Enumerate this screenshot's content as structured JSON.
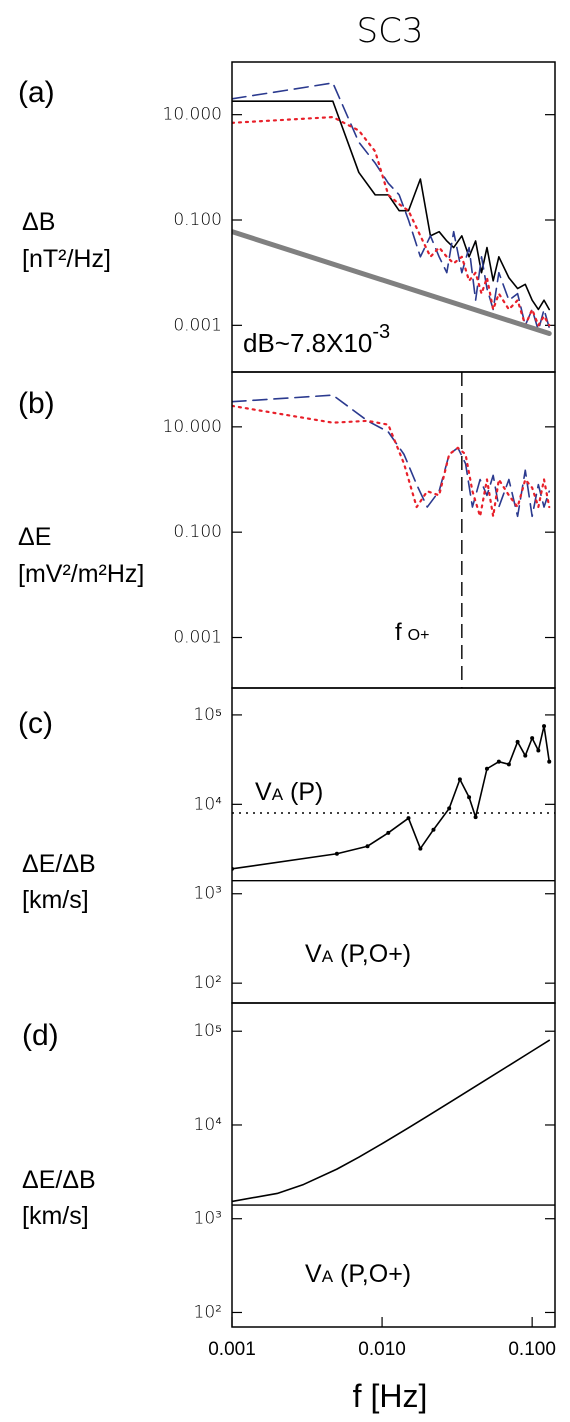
{
  "chart_data": [
    {
      "type": "line",
      "title": "SC3",
      "panel_label": "(a)",
      "ylabel": [
        "ΔB",
        "[nT²/Hz]"
      ],
      "log_x": true,
      "log_y": true,
      "xlim": [
        0.001,
        0.142
      ],
      "ylim": [
        0.00013,
        100
      ],
      "yticks": [
        {
          "value": 10,
          "label": "10.000"
        },
        {
          "value": 0.1,
          "label": "0.100"
        },
        {
          "value": 0.001,
          "label": "0.001"
        }
      ],
      "x": [
        0.001,
        0.0047,
        0.007,
        0.009,
        0.011,
        0.013,
        0.015,
        0.018,
        0.021,
        0.024,
        0.027,
        0.03,
        0.034,
        0.038,
        0.042,
        0.046,
        0.05,
        0.055,
        0.06,
        0.07,
        0.08,
        0.09,
        0.1,
        0.11,
        0.12,
        0.13
      ],
      "series": [
        {
          "color": "#000000",
          "style": "solid",
          "values": [
            18,
            18,
            0.8,
            0.3,
            0.3,
            0.15,
            0.15,
            0.6,
            0.05,
            0.06,
            0.04,
            0.03,
            0.05,
            0.02,
            0.04,
            0.01,
            0.03,
            0.007,
            0.02,
            0.008,
            0.005,
            0.006,
            0.003,
            0.002,
            0.003,
            0.002
          ]
        },
        {
          "color": "#2b3a8f",
          "style": "dashed",
          "values": [
            20,
            40,
            3,
            1.2,
            0.5,
            0.3,
            0.1,
            0.02,
            0.05,
            0.02,
            0.01,
            0.06,
            0.01,
            0.03,
            0.003,
            0.02,
            0.005,
            0.002,
            0.01,
            0.003,
            0.004,
            0.001,
            0.002,
            0.0008,
            0.002,
            0.0009
          ]
        },
        {
          "color": "#e8202a",
          "style": "dotted",
          "values": [
            7,
            9,
            5,
            2,
            0.3,
            0.2,
            0.15,
            0.05,
            0.02,
            0.03,
            0.02,
            0.015,
            0.02,
            0.007,
            0.01,
            0.004,
            0.008,
            0.002,
            0.004,
            0.002,
            0.003,
            0.001,
            0.002,
            0.001,
            0.0015,
            0.001
          ]
        },
        {
          "color": "#808080",
          "style": "thick",
          "x": [
            0.001,
            0.13
          ],
          "values": [
            0.06,
            0.0007
          ]
        }
      ],
      "annotation": {
        "text": "dB~7.8X10",
        "superscript": "-3"
      }
    },
    {
      "type": "line",
      "panel_label": "(b)",
      "ylabel": [
        "ΔE",
        "[mV²/m²Hz]"
      ],
      "log_x": true,
      "log_y": true,
      "xlim": [
        0.001,
        0.142
      ],
      "ylim": [
        0.00011,
        110
      ],
      "yticks": [
        {
          "value": 10,
          "label": "10.000"
        },
        {
          "value": 0.1,
          "label": "0.100"
        },
        {
          "value": 0.001,
          "label": "0.001"
        }
      ],
      "x": [
        0.001,
        0.0047,
        0.008,
        0.011,
        0.014,
        0.017,
        0.02,
        0.024,
        0.028,
        0.032,
        0.036,
        0.04,
        0.045,
        0.05,
        0.055,
        0.06,
        0.07,
        0.08,
        0.09,
        0.1,
        0.11,
        0.12,
        0.13
      ],
      "series": [
        {
          "color": "#2b3a8f",
          "style": "dashed",
          "values": [
            30,
            40,
            13,
            8,
            3,
            0.8,
            0.3,
            0.6,
            3,
            4,
            2,
            0.3,
            1,
            0.5,
            1.2,
            0.3,
            1,
            0.2,
            1.5,
            0.2,
            0.8,
            0.3,
            0.6
          ]
        },
        {
          "color": "#e8202a",
          "style": "dotted",
          "values": [
            25,
            12,
            13,
            11,
            2,
            0.3,
            0.6,
            0.5,
            3,
            4,
            3,
            0.6,
            0.2,
            1,
            0.2,
            1,
            0.5,
            0.3,
            1,
            0.7,
            0.3,
            1,
            0.3
          ]
        }
      ],
      "vlines": [
        {
          "value": 0.034,
          "style": "dashed"
        }
      ],
      "annotation": {
        "text": "f",
        "subscript": "O+"
      }
    },
    {
      "type": "line",
      "panel_label": "(c)",
      "ylabel": [
        "ΔE/ΔB",
        "[km/s]"
      ],
      "log_x": true,
      "log_y": true,
      "xlim": [
        0.001,
        0.142
      ],
      "ylim": [
        60,
        200000
      ],
      "yticks": [
        {
          "value": 100000,
          "label": "10⁵"
        },
        {
          "value": 10000,
          "label": "10⁴"
        },
        {
          "value": 1000,
          "label": "10³"
        },
        {
          "value": 100,
          "label": "10²"
        }
      ],
      "x": [
        0.001,
        0.005,
        0.008,
        0.011,
        0.015,
        0.018,
        0.022,
        0.028,
        0.033,
        0.038,
        0.042,
        0.05,
        0.06,
        0.07,
        0.08,
        0.09,
        0.1,
        0.11,
        0.12,
        0.13
      ],
      "series": [
        {
          "color": "#000000",
          "style": "solid",
          "markers": true,
          "values": [
            1900,
            2800,
            3400,
            4800,
            7000,
            3200,
            5200,
            9000,
            19000,
            12000,
            7200,
            25000,
            30000,
            28000,
            50000,
            35000,
            55000,
            40000,
            75000,
            30000
          ]
        }
      ],
      "hlines": [
        {
          "value": 8000,
          "style": "dotted",
          "label": {
            "main": "V",
            "sub": "A",
            "rest": "(P)"
          }
        },
        {
          "value": 1400,
          "style": "solid",
          "label": {
            "main": "V",
            "sub": "A",
            "rest": "(P,O+)"
          }
        }
      ]
    },
    {
      "type": "line",
      "panel_label": "(d)",
      "ylabel": [
        "ΔE/ΔB",
        "[km/s]"
      ],
      "log_x": true,
      "log_y": true,
      "xlim": [
        0.001,
        0.142
      ],
      "ylim": [
        70,
        200000
      ],
      "yticks": [
        {
          "value": 100000,
          "label": "10⁵"
        },
        {
          "value": 10000,
          "label": "10⁴"
        },
        {
          "value": 1000,
          "label": "10³"
        },
        {
          "value": 100,
          "label": "10²"
        }
      ],
      "xticks": [
        {
          "value": 0.001,
          "label": "0.001"
        },
        {
          "value": 0.01,
          "label": "0.010"
        },
        {
          "value": 0.1,
          "label": "0.100"
        }
      ],
      "xlabel": "f [Hz]",
      "x": [
        0.001,
        0.002,
        0.003,
        0.005,
        0.007,
        0.01,
        0.015,
        0.02,
        0.03,
        0.05,
        0.07,
        0.1,
        0.13
      ],
      "series": [
        {
          "color": "#000000",
          "style": "solid",
          "values": [
            1530,
            1860,
            2320,
            3380,
            4530,
            6310,
            9330,
            12380,
            18500,
            30780,
            43070,
            61520,
            79960
          ]
        }
      ],
      "hlines": [
        {
          "value": 1400,
          "style": "solid",
          "label": {
            "main": "V",
            "sub": "A",
            "rest": "(P,O+)"
          }
        }
      ]
    }
  ]
}
